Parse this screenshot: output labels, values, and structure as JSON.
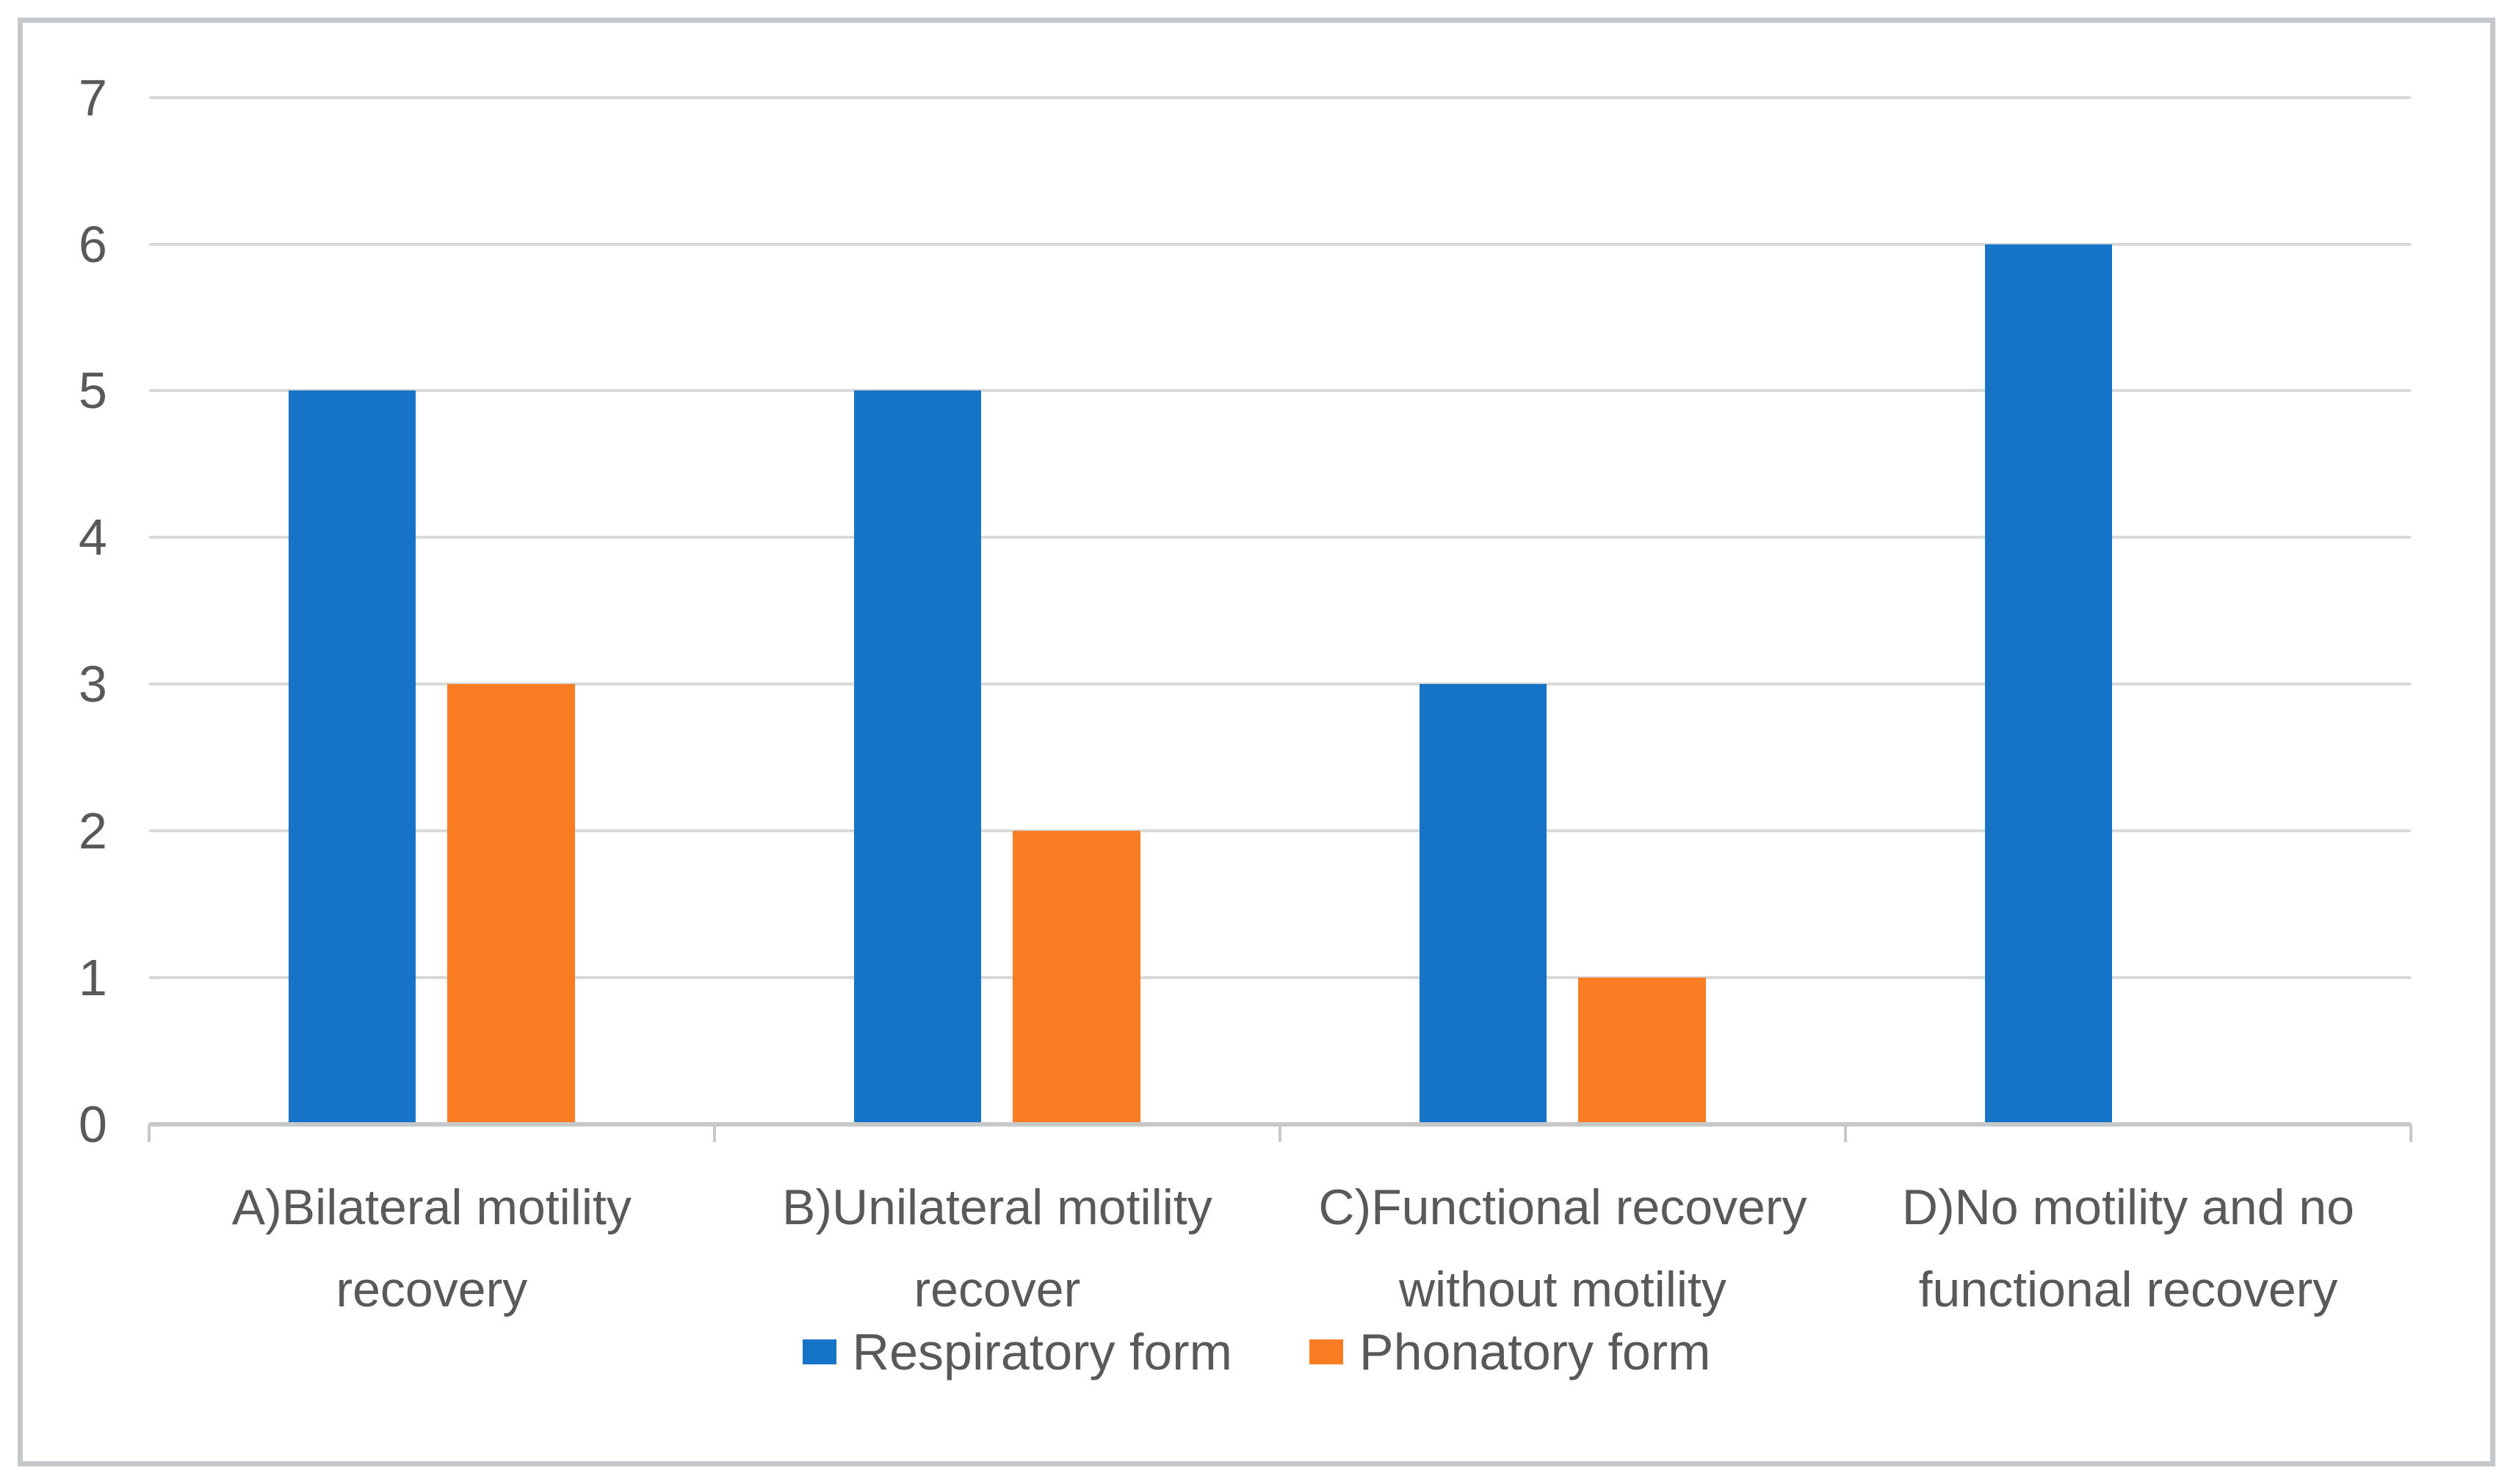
{
  "chart_data": {
    "type": "bar",
    "title": "",
    "xlabel": "",
    "ylabel": "",
    "categories": [
      "A)Bilateral motility\nrecovery",
      "B)Unilateral motility\nrecover",
      "C)Functional recovery\nwithout motility",
      "D)No motility and no\nfunctional recovery"
    ],
    "series": [
      {
        "name": "Respiratory form",
        "color": "#1573c8",
        "values": [
          5,
          5,
          3,
          6
        ]
      },
      {
        "name": "Phonatory form",
        "color": "#fb7d23",
        "values": [
          3,
          2,
          1,
          0
        ]
      }
    ],
    "ylim": [
      0,
      7
    ],
    "yticks": [
      0,
      1,
      2,
      3,
      4,
      5,
      6,
      7
    ],
    "grid": true,
    "legend_position": "bottom-center"
  },
  "style": {
    "background": "#ffffff",
    "frame_border_color": "#c5c8cb",
    "gridline_color": "#d9d9d9",
    "axis_line_color": "#c6c8ca",
    "text_color": "#595959"
  }
}
